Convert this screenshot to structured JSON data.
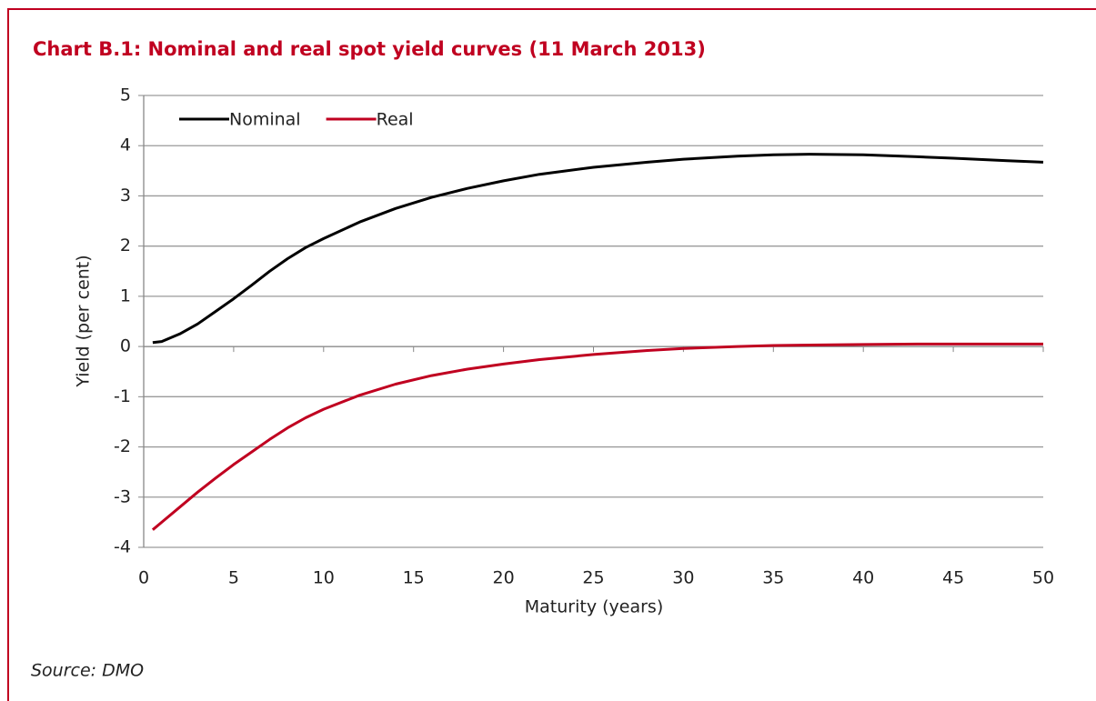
{
  "chart_data": {
    "type": "line",
    "title": "Chart B.1: Nominal and real spot yield curves (11 March 2013)",
    "x_label": "Maturity (years)",
    "y_label": "Yield (per cent)",
    "source": "Source: DMO",
    "x": [
      0.5,
      1,
      2,
      3,
      4,
      5,
      6,
      7,
      8,
      9,
      10,
      12,
      14,
      16,
      18,
      20,
      22,
      25,
      28,
      30,
      33,
      35,
      37,
      40,
      43,
      45,
      48,
      50
    ],
    "series": [
      {
        "name": "Nominal",
        "color": "#000000",
        "values": [
          0.08,
          0.1,
          0.25,
          0.45,
          0.7,
          0.95,
          1.22,
          1.5,
          1.75,
          1.97,
          2.15,
          2.48,
          2.75,
          2.97,
          3.15,
          3.3,
          3.43,
          3.57,
          3.67,
          3.73,
          3.79,
          3.82,
          3.83,
          3.82,
          3.78,
          3.75,
          3.7,
          3.67
        ]
      },
      {
        "name": "Real",
        "color": "#c00020",
        "values": [
          -3.65,
          -3.5,
          -3.2,
          -2.9,
          -2.62,
          -2.35,
          -2.1,
          -1.85,
          -1.62,
          -1.42,
          -1.25,
          -0.97,
          -0.75,
          -0.58,
          -0.45,
          -0.35,
          -0.26,
          -0.16,
          -0.08,
          -0.04,
          0,
          0.02,
          0.03,
          0.04,
          0.05,
          0.05,
          0.05,
          0.05
        ]
      }
    ],
    "xlim": [
      0,
      50
    ],
    "xticks": [
      0,
      5,
      10,
      15,
      20,
      25,
      30,
      35,
      40,
      45,
      50
    ],
    "ylim": [
      -4,
      5
    ],
    "yticks": [
      -4,
      -3,
      -2,
      -1,
      0,
      1,
      2,
      3,
      4,
      5
    ],
    "grid": true,
    "legend": "top-left"
  }
}
